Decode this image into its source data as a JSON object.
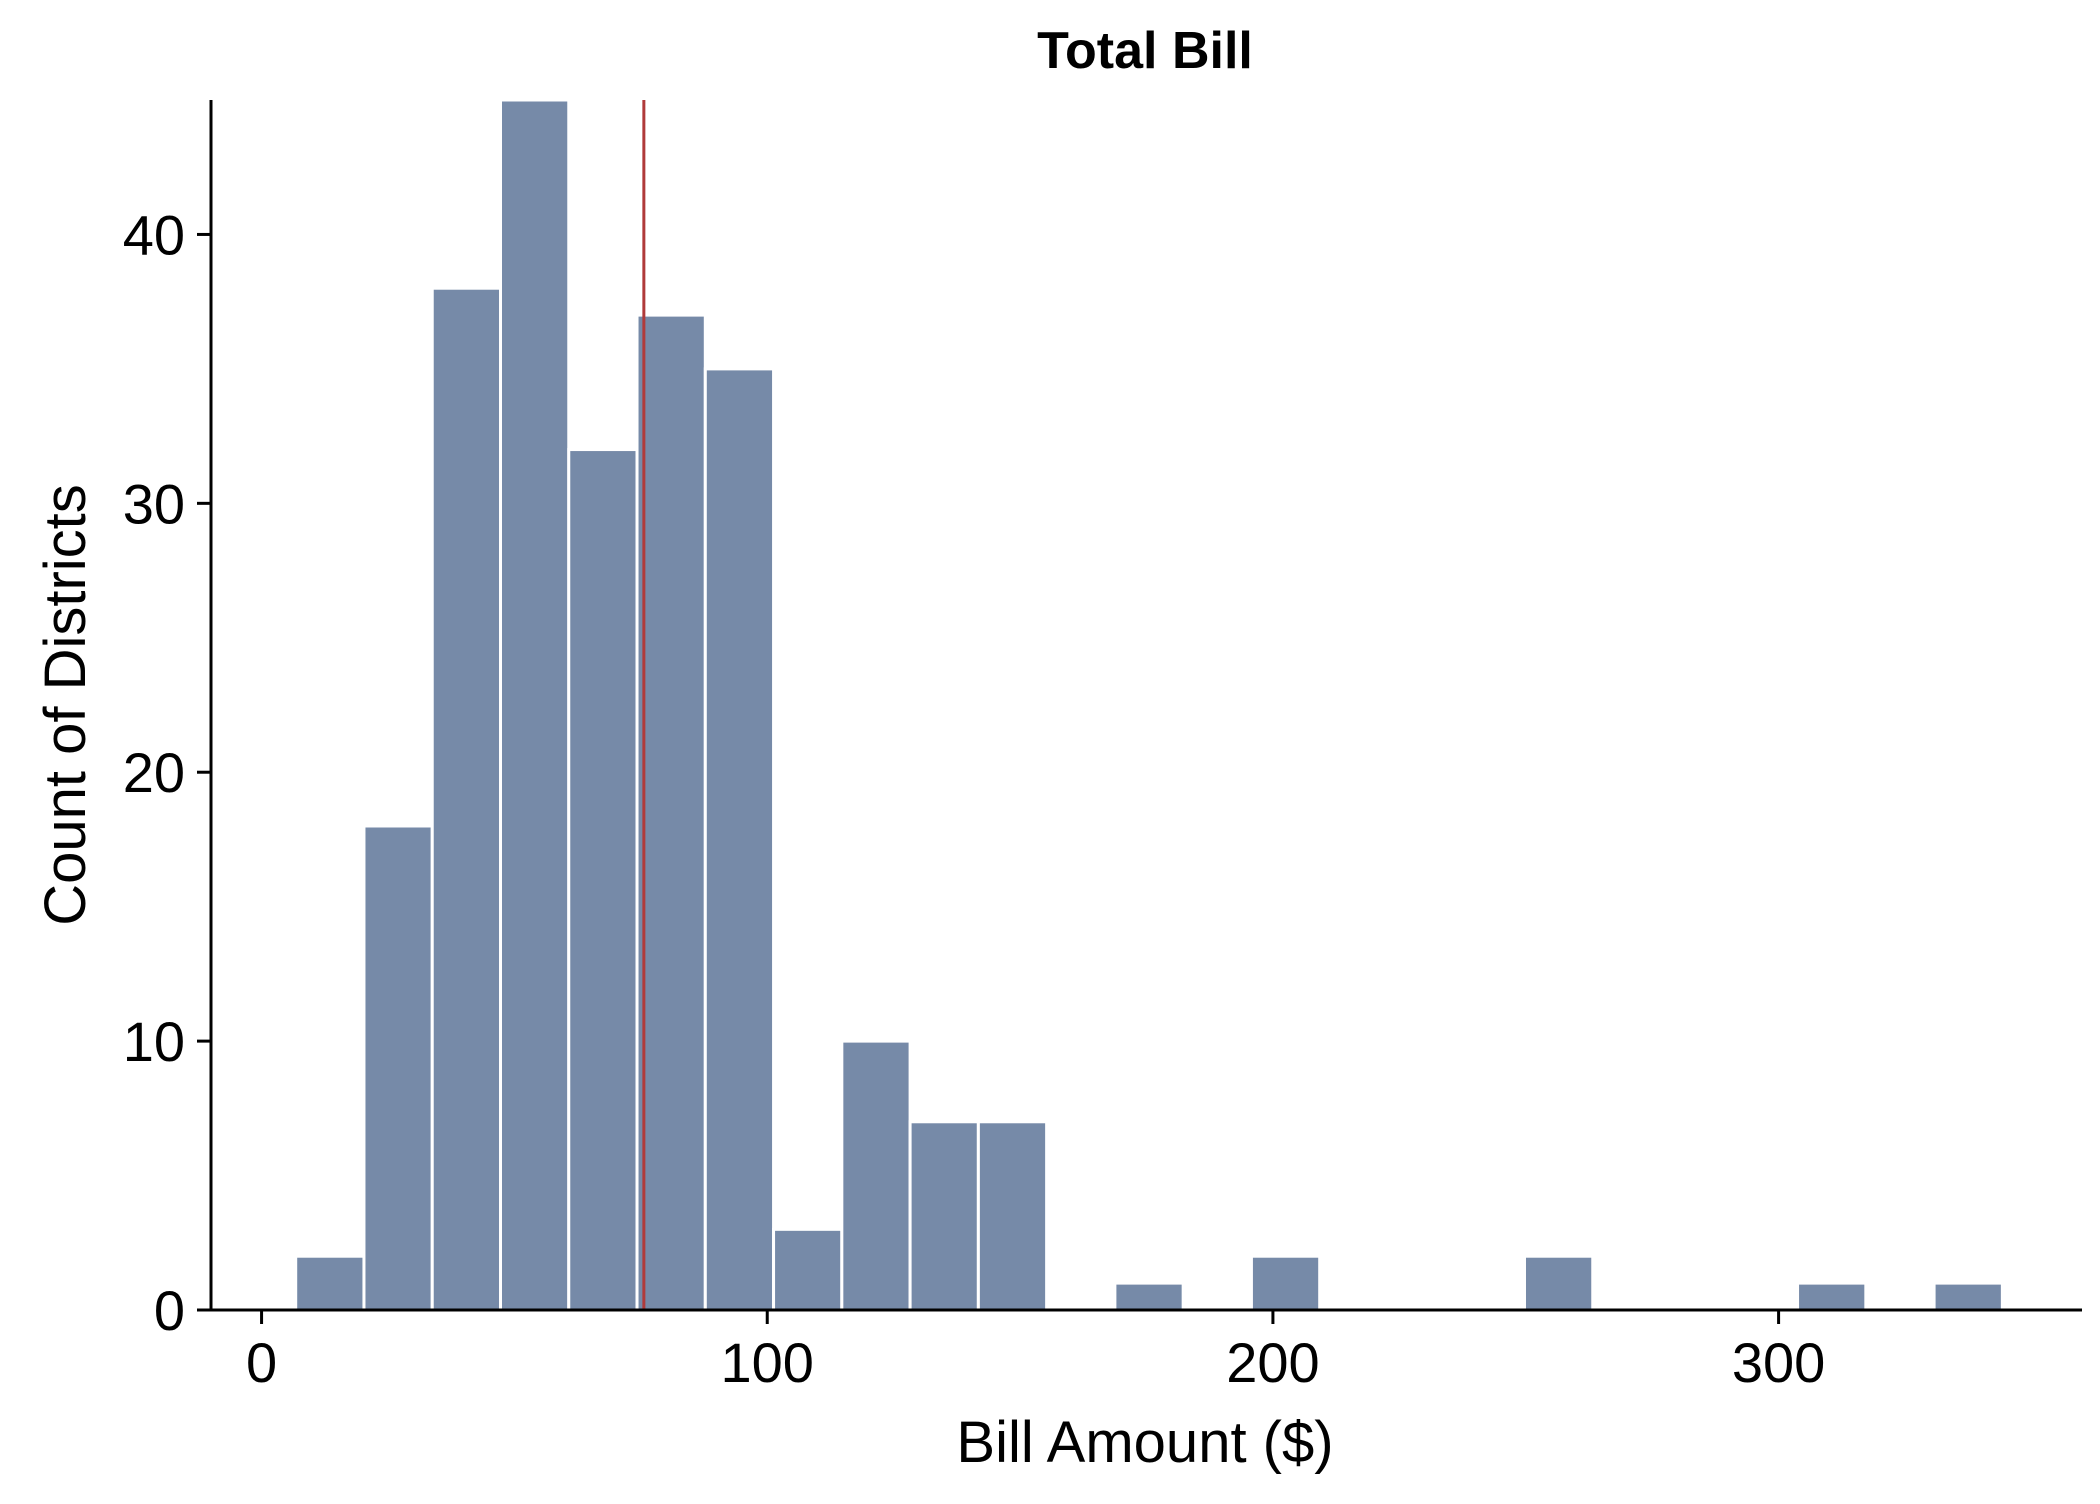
{
  "chart_data": {
    "type": "bar",
    "title": "Total Bill",
    "xlabel": "Bill Amount ($)",
    "ylabel": "Count of Districts",
    "xlim": [
      -10,
      360
    ],
    "ylim": [
      0,
      45
    ],
    "bin_width": 13.5,
    "x_ticks": [
      0,
      100,
      200,
      300
    ],
    "y_ticks": [
      0,
      10,
      20,
      30,
      40
    ],
    "bins": [
      {
        "x_start": 6.75,
        "x_end": 20.25,
        "count": 2
      },
      {
        "x_start": 20.25,
        "x_end": 33.75,
        "count": 18
      },
      {
        "x_start": 33.75,
        "x_end": 47.25,
        "count": 38
      },
      {
        "x_start": 47.25,
        "x_end": 60.75,
        "count": 45
      },
      {
        "x_start": 60.75,
        "x_end": 74.25,
        "count": 32
      },
      {
        "x_start": 74.25,
        "x_end": 87.75,
        "count": 37
      },
      {
        "x_start": 87.75,
        "x_end": 101.25,
        "count": 35
      },
      {
        "x_start": 101.25,
        "x_end": 114.75,
        "count": 3
      },
      {
        "x_start": 114.75,
        "x_end": 128.25,
        "count": 10
      },
      {
        "x_start": 128.25,
        "x_end": 141.75,
        "count": 7
      },
      {
        "x_start": 141.75,
        "x_end": 155.25,
        "count": 7
      },
      {
        "x_start": 168.75,
        "x_end": 182.25,
        "count": 1
      },
      {
        "x_start": 195.75,
        "x_end": 209.25,
        "count": 2
      },
      {
        "x_start": 249.75,
        "x_end": 263.25,
        "count": 2
      },
      {
        "x_start": 303.75,
        "x_end": 317.25,
        "count": 1
      },
      {
        "x_start": 330.75,
        "x_end": 344.25,
        "count": 1
      }
    ],
    "reference_line": {
      "x": 75.6,
      "color": "#b03a3a"
    },
    "bar_color": "#768aa8",
    "bar_edge_color": "#ffffff",
    "grid": false,
    "legend": "none"
  }
}
